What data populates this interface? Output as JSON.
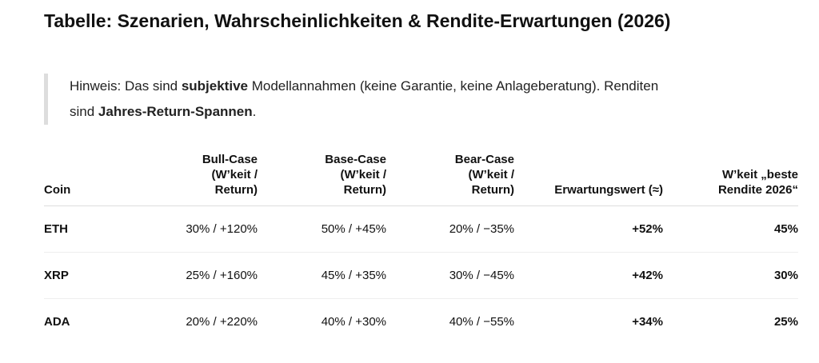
{
  "title": "Tabelle: Szenarien, Wahrscheinlichkeiten & Rendite-Erwartungen (2026)",
  "note": [
    "Hinweis: Das sind ",
    "subjektive",
    " Modellannahmen (keine Garantie, keine Anlageberatung). Renditen sind ",
    "Jahres-Return-Spannen",
    "."
  ],
  "table": {
    "headers": [
      "Coin",
      "Bull-Case (W’keit / Return)",
      "Base-Case (W’keit / Return)",
      "Bear-Case (W’keit / Return)",
      "Erwartungswert (≈)",
      "W’keit „beste Rendite 2026“"
    ],
    "rows": [
      [
        "ETH",
        "30% / +120%",
        "50% / +45%",
        "20% / −35%",
        "+52%",
        "45%"
      ],
      [
        "XRP",
        "25% / +160%",
        "45% / +35%",
        "30% / −45%",
        "+42%",
        "30%"
      ],
      [
        "ADA",
        "20% / +220%",
        "40% / +30%",
        "40% / −55%",
        "+34%",
        "25%"
      ]
    ]
  }
}
